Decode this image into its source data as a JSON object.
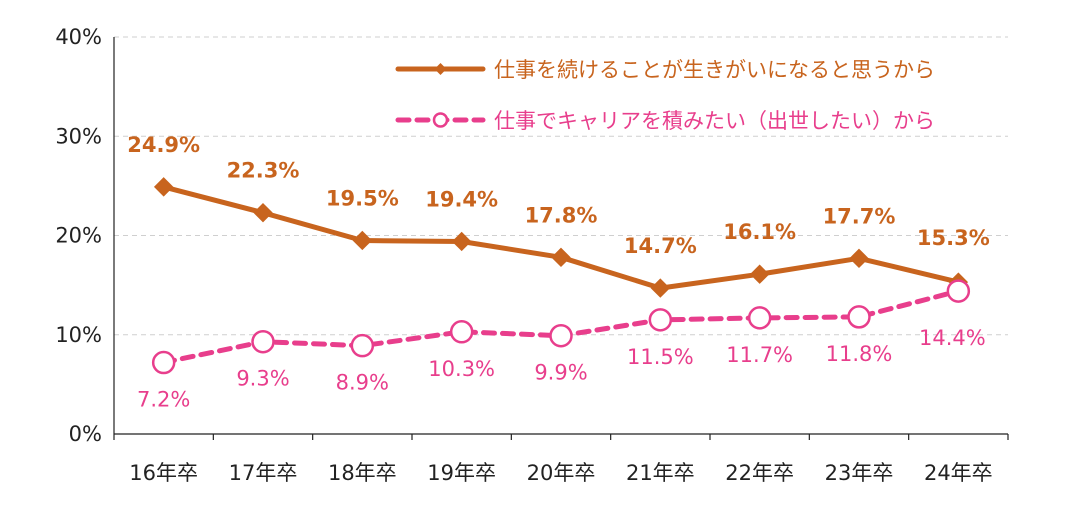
{
  "chart_data": {
    "type": "line",
    "categories": [
      "16年卒",
      "17年卒",
      "18年卒",
      "19年卒",
      "20年卒",
      "21年卒",
      "22年卒",
      "23年卒",
      "24年卒"
    ],
    "y_ticks": [
      "0%",
      "10%",
      "20%",
      "30%",
      "40%"
    ],
    "ylim": [
      0,
      40
    ],
    "grid": true,
    "legend_position": "top-right",
    "series": [
      {
        "name": "仕事を続けることが生きがいになると思うから",
        "values": [
          24.9,
          22.3,
          19.5,
          19.4,
          17.8,
          14.7,
          16.1,
          17.7,
          15.3
        ],
        "labels": [
          "24.9%",
          "22.3%",
          "19.5%",
          "19.4%",
          "17.8%",
          "14.7%",
          "16.1%",
          "17.7%",
          "15.3%"
        ],
        "color": "#c8641e",
        "line": "solid",
        "marker": "diamond"
      },
      {
        "name": "仕事でキャリアを積みたい（出世したい）から",
        "values": [
          7.2,
          9.3,
          8.9,
          10.3,
          9.9,
          11.5,
          11.7,
          11.8,
          14.4
        ],
        "labels": [
          "7.2%",
          "9.3%",
          "8.9%",
          "10.3%",
          "9.9%",
          "11.5%",
          "11.7%",
          "11.8%",
          "14.4%"
        ],
        "color": "#e83e8c",
        "line": "dashed",
        "marker": "open-circle"
      }
    ]
  }
}
